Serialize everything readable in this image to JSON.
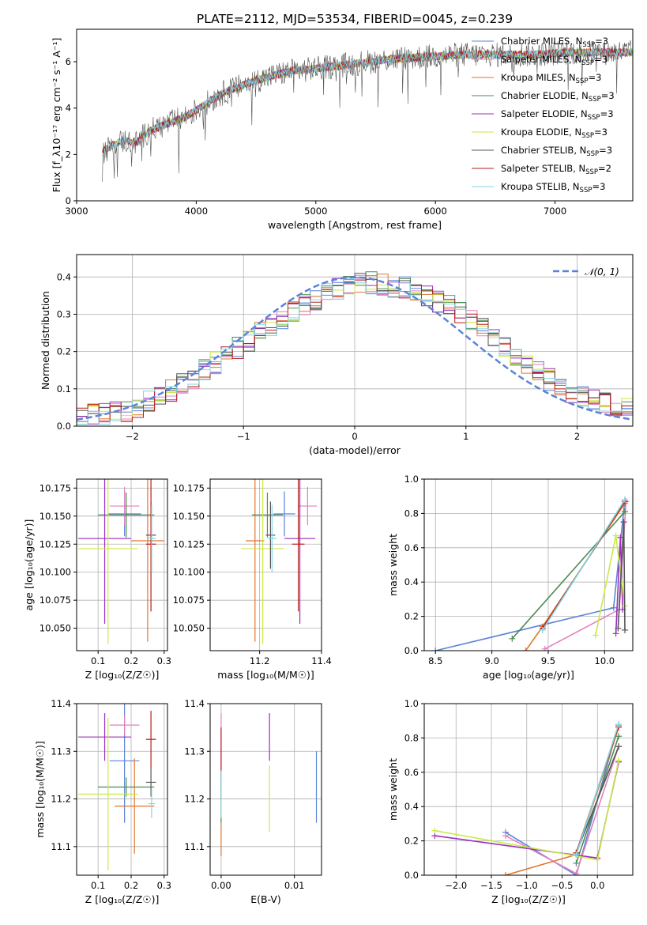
{
  "figure_title": "PLATE=2112, MJD=53534, FIBERID=0045, z=0.239",
  "colors": {
    "chabrier_miles": "#5b84d8",
    "salpeter_miles": "#e37fbf",
    "kroupa_miles": "#e3752b",
    "chabrier_elodie": "#4d8a55",
    "salpeter_elodie": "#9a2fbe",
    "kroupa_elodie": "#c9ea43",
    "chabrier_stelib": "#555555",
    "salpeter_stelib": "#b81d1d",
    "kroupa_stelib": "#7fd6e6",
    "normal_curve": "#5b84d8",
    "grid": "#b0b0b0"
  },
  "chart_data": [
    {
      "id": "spectrum",
      "type": "line",
      "title": "PLATE=2112, MJD=53534, FIBERID=0045, z=0.239",
      "xlabel": "wavelength [Angstrom, rest frame]",
      "ylabel": "Flux [f_λ10⁻¹⁷ erg cm⁻² s⁻¹ A⁻¹]",
      "xlim": [
        3000,
        7650
      ],
      "ylim": [
        0,
        7.4
      ],
      "xticks": [
        3000,
        4000,
        5000,
        6000,
        7000
      ],
      "yticks": [
        0,
        2,
        4,
        6
      ],
      "grid": false,
      "legend_position": "top-right",
      "spectrum_anchor": {
        "x": [
          3215,
          3300,
          3400,
          3500,
          3600,
          3700,
          3800,
          3900,
          4000,
          4200,
          4500,
          4800,
          5000,
          5300,
          5600,
          5900,
          6200,
          6500,
          6800,
          7100,
          7400,
          7650
        ],
        "y": [
          2.1,
          2.4,
          2.6,
          2.5,
          3.0,
          3.2,
          3.4,
          3.6,
          3.9,
          4.6,
          5.2,
          5.6,
          5.7,
          5.9,
          6.1,
          6.2,
          6.3,
          6.3,
          6.3,
          6.4,
          6.4,
          6.4
        ]
      },
      "series": [
        {
          "name": "Chabrier MILES, N",
          "sub": "SSP",
          "suffix": "=3",
          "color": "#5b84d8"
        },
        {
          "name": "Salpeter MILES, N",
          "sub": "SSP",
          "suffix": "=3",
          "color": "#e37fbf"
        },
        {
          "name": "Kroupa MILES, N",
          "sub": "SSP",
          "suffix": "=3",
          "color": "#e3752b"
        },
        {
          "name": "Chabrier ELODIE, N",
          "sub": "SSP",
          "suffix": "=3",
          "color": "#4d8a55"
        },
        {
          "name": "Salpeter ELODIE, N",
          "sub": "SSP",
          "suffix": "=3",
          "color": "#9a2fbe"
        },
        {
          "name": "Kroupa ELODIE, N",
          "sub": "SSP",
          "suffix": "=3",
          "color": "#c9ea43"
        },
        {
          "name": "Chabrier STELIB, N",
          "sub": "SSP",
          "suffix": "=3",
          "color": "#555555"
        },
        {
          "name": "Salpeter STELIB, N",
          "sub": "SSP",
          "suffix": "=2",
          "color": "#b81d1d"
        },
        {
          "name": "Kroupa STELIB, N",
          "sub": "SSP",
          "suffix": "=3",
          "color": "#7fd6e6"
        }
      ]
    },
    {
      "id": "residual_hist",
      "type": "histogram",
      "xlabel": "(data-model)/error",
      "ylabel": "Normed distribution",
      "xlim": [
        -2.5,
        2.5
      ],
      "ylim": [
        0,
        0.46
      ],
      "xticks": [
        -2,
        -1,
        0,
        1,
        2
      ],
      "yticks": [
        0.0,
        0.1,
        0.2,
        0.3,
        0.4
      ],
      "grid": true,
      "bin_width": 0.1,
      "bin_start": -2.5,
      "legend": "𝒩(0, 1)",
      "legend_position": "top-right",
      "normal_curve": {
        "mean": 0,
        "sigma": 1
      },
      "histogram_shape": {
        "x": [
          -2.5,
          -2.0,
          -1.5,
          -1.0,
          -0.5,
          0.0,
          0.5,
          1.0,
          1.5,
          2.0,
          2.5
        ],
        "y": [
          0.025,
          0.04,
          0.12,
          0.22,
          0.32,
          0.39,
          0.37,
          0.3,
          0.17,
          0.08,
          0.045
        ]
      },
      "series_colors": [
        "#5b84d8",
        "#e37fbf",
        "#e3752b",
        "#4d8a55",
        "#9a2fbe",
        "#c9ea43",
        "#555555",
        "#b81d1d",
        "#7fd6e6"
      ]
    },
    {
      "id": "age_vs_Z",
      "type": "errorbar",
      "xlabel": "Z [log₁₀(Z/Z☉)]",
      "ylabel": "age  [log₁₀(age/yr)]",
      "xlim": [
        0.035,
        0.31
      ],
      "ylim": [
        10.03,
        10.183
      ],
      "xticks": [
        0.1,
        0.2,
        0.3
      ],
      "yticks": [
        10.05,
        10.075,
        10.1,
        10.125,
        10.15,
        10.175
      ],
      "grid": true,
      "points": [
        {
          "x": 0.18,
          "y": 10.152,
          "xerr": 0.05,
          "yerr": 0.02,
          "color": "#5b84d8"
        },
        {
          "x": 0.18,
          "y": 10.159,
          "xerr": 0.045,
          "yerr": 0.017,
          "color": "#e37fbf"
        },
        {
          "x": 0.25,
          "y": 10.128,
          "xerr": 0.05,
          "yerr": 0.09,
          "color": "#e3752b"
        },
        {
          "x": 0.185,
          "y": 10.151,
          "xerr": 0.085,
          "yerr": 0.02,
          "color": "#4d8a55"
        },
        {
          "x": 0.12,
          "y": 10.13,
          "xerr": 0.08,
          "yerr": 0.076,
          "color": "#9a2fbe"
        },
        {
          "x": 0.13,
          "y": 10.121,
          "xerr": 0.09,
          "yerr": 0.085,
          "color": "#c9ea43"
        },
        {
          "x": 0.26,
          "y": 10.133,
          "xerr": 0.015,
          "yerr": 0.03,
          "color": "#555555"
        },
        {
          "x": 0.26,
          "y": 10.125,
          "xerr": 0.015,
          "yerr": 0.06,
          "color": "#b81d1d"
        },
        {
          "x": 0.262,
          "y": 10.13,
          "xerr": 0.012,
          "yerr": 0.03,
          "color": "#7fd6e6"
        }
      ]
    },
    {
      "id": "age_vs_mass",
      "type": "errorbar",
      "xlabel": "mass [log₁₀(M/M☉)]",
      "ylabel": "",
      "xlim": [
        11.04,
        11.4
      ],
      "ylim": [
        10.03,
        10.183
      ],
      "xticks": [
        11.2,
        11.4
      ],
      "yticks": [
        10.05,
        10.075,
        10.1,
        10.125,
        10.15,
        10.175
      ],
      "grid": true,
      "points": [
        {
          "x": 11.28,
          "y": 10.152,
          "xerr": 0.035,
          "yerr": 0.02,
          "color": "#5b84d8"
        },
        {
          "x": 11.355,
          "y": 10.159,
          "xerr": 0.03,
          "yerr": 0.017,
          "color": "#e37fbf"
        },
        {
          "x": 11.185,
          "y": 10.128,
          "xerr": 0.03,
          "yerr": 0.09,
          "color": "#e3752b"
        },
        {
          "x": 11.225,
          "y": 10.151,
          "xerr": 0.05,
          "yerr": 0.02,
          "color": "#4d8a55"
        },
        {
          "x": 11.33,
          "y": 10.13,
          "xerr": 0.05,
          "yerr": 0.076,
          "color": "#9a2fbe"
        },
        {
          "x": 11.21,
          "y": 10.121,
          "xerr": 0.07,
          "yerr": 0.085,
          "color": "#c9ea43"
        },
        {
          "x": 11.235,
          "y": 10.133,
          "xerr": 0.015,
          "yerr": 0.03,
          "color": "#555555"
        },
        {
          "x": 11.325,
          "y": 10.125,
          "xerr": 0.02,
          "yerr": 0.06,
          "color": "#b81d1d"
        },
        {
          "x": 11.24,
          "y": 10.13,
          "xerr": 0.015,
          "yerr": 0.03,
          "color": "#7fd6e6"
        }
      ]
    },
    {
      "id": "massweight_vs_age",
      "type": "line",
      "xlabel": "age  [log₁₀(age/yr)]",
      "ylabel": "mass weight",
      "xlim": [
        8.4,
        10.25
      ],
      "ylim": [
        0,
        1.0
      ],
      "xticks": [
        8.5,
        9.0,
        9.5,
        10.0
      ],
      "yticks": [
        0.0,
        0.2,
        0.4,
        0.6,
        0.8,
        1.0
      ],
      "grid": true,
      "series": [
        {
          "color": "#5b84d8",
          "x": [
            8.5,
            10.08,
            10.18
          ],
          "y": [
            0.0,
            0.25,
            0.88
          ]
        },
        {
          "color": "#e37fbf",
          "x": [
            9.47,
            10.13,
            10.19
          ],
          "y": [
            0.01,
            0.24,
            0.87
          ]
        },
        {
          "color": "#e3752b",
          "x": [
            9.3,
            9.45,
            10.18
          ],
          "y": [
            0.0,
            0.14,
            0.86
          ]
        },
        {
          "color": "#4d8a55",
          "x": [
            9.18,
            10.18
          ],
          "y": [
            0.07,
            0.81
          ]
        },
        {
          "color": "#9a2fbe",
          "x": [
            10.1,
            10.14,
            10.16
          ],
          "y": [
            0.1,
            0.66,
            0.24
          ]
        },
        {
          "color": "#c9ea43",
          "x": [
            9.92,
            10.1,
            10.18
          ],
          "y": [
            0.09,
            0.67,
            0.26
          ]
        },
        {
          "color": "#555555",
          "x": [
            10.12,
            10.17,
            10.18
          ],
          "y": [
            0.13,
            0.75,
            0.12
          ]
        },
        {
          "color": "#b81d1d",
          "x": [
            9.45,
            10.18
          ],
          "y": [
            0.13,
            0.87
          ]
        },
        {
          "color": "#7fd6e6",
          "x": [
            9.45,
            10.18
          ],
          "y": [
            0.12,
            0.88
          ]
        }
      ]
    },
    {
      "id": "mass_vs_Z",
      "type": "errorbar",
      "xlabel": "Z [log₁₀(Z/Z☉)]",
      "ylabel": "mass [log₁₀(M/M☉)]",
      "xlim": [
        0.035,
        0.31
      ],
      "ylim": [
        11.04,
        11.4
      ],
      "xticks": [
        0.1,
        0.2,
        0.3
      ],
      "yticks": [
        11.1,
        11.2,
        11.3,
        11.4
      ],
      "grid": true,
      "points": [
        {
          "x": 0.18,
          "y": 11.28,
          "xerr": 0.045,
          "yerr": 0.13,
          "color": "#5b84d8"
        },
        {
          "x": 0.18,
          "y": 11.355,
          "xerr": 0.045,
          "yerr": 0.02,
          "color": "#e37fbf"
        },
        {
          "x": 0.21,
          "y": 11.185,
          "xerr": 0.06,
          "yerr": 0.1,
          "color": "#e3752b"
        },
        {
          "x": 0.185,
          "y": 11.225,
          "xerr": 0.085,
          "yerr": 0.02,
          "color": "#4d8a55"
        },
        {
          "x": 0.12,
          "y": 11.33,
          "xerr": 0.08,
          "yerr": 0.05,
          "color": "#9a2fbe"
        },
        {
          "x": 0.13,
          "y": 11.21,
          "xerr": 0.09,
          "yerr": 0.16,
          "color": "#c9ea43"
        },
        {
          "x": 0.26,
          "y": 11.235,
          "xerr": 0.015,
          "yerr": 0.03,
          "color": "#555555"
        },
        {
          "x": 0.26,
          "y": 11.325,
          "xerr": 0.015,
          "yerr": 0.06,
          "color": "#b81d1d"
        },
        {
          "x": 0.262,
          "y": 11.19,
          "xerr": 0.01,
          "yerr": 0.03,
          "color": "#7fd6e6"
        }
      ]
    },
    {
      "id": "mass_vs_ebv",
      "type": "errorbar",
      "xlabel": "E(B-V)",
      "ylabel": "",
      "xlim": [
        -0.0015,
        0.0137
      ],
      "ylim": [
        11.04,
        11.4
      ],
      "xticks": [
        0.0,
        0.01
      ],
      "yticks": [
        11.1,
        11.2,
        11.3,
        11.4
      ],
      "grid": true,
      "points": [
        {
          "x": 0.013,
          "y": 11.225,
          "xerr": 0,
          "yerr": 0.075,
          "color": "#5b84d8"
        },
        {
          "x": 0.0,
          "y": 11.3,
          "xerr": 0,
          "yerr": 0.08,
          "color": "#e37fbf"
        },
        {
          "x": 0.0,
          "y": 11.14,
          "xerr": 0,
          "yerr": 0.06,
          "color": "#e3752b"
        },
        {
          "x": 0.0,
          "y": 11.2,
          "xerr": 0,
          "yerr": 0.05,
          "color": "#4d8a55"
        },
        {
          "x": 0.0066,
          "y": 11.33,
          "xerr": 0,
          "yerr": 0.05,
          "color": "#9a2fbe"
        },
        {
          "x": 0.0066,
          "y": 11.2,
          "xerr": 0,
          "yerr": 0.07,
          "color": "#c9ea43"
        },
        {
          "x": 0.0,
          "y": 11.23,
          "xerr": 0,
          "yerr": 0.03,
          "color": "#555555"
        },
        {
          "x": 0.0,
          "y": 11.3,
          "xerr": 0,
          "yerr": 0.05,
          "color": "#b81d1d"
        },
        {
          "x": 0.0,
          "y": 11.21,
          "xerr": 0,
          "yerr": 0.05,
          "color": "#7fd6e6"
        }
      ]
    },
    {
      "id": "massweight_vs_Z",
      "type": "line",
      "xlabel": "Z [log₁₀(Z/Z☉)]",
      "ylabel": "mass weight",
      "xlim": [
        -2.45,
        0.5
      ],
      "ylim": [
        0,
        1.0
      ],
      "xticks": [
        -2.0,
        -1.5,
        -1.0,
        -0.5,
        0.0
      ],
      "yticks": [
        0.0,
        0.2,
        0.4,
        0.6,
        0.8,
        1.0
      ],
      "grid": true,
      "series": [
        {
          "color": "#5b84d8",
          "x": [
            -1.3,
            -0.3,
            0.3
          ],
          "y": [
            0.25,
            0.0,
            0.88
          ]
        },
        {
          "color": "#e37fbf",
          "x": [
            -1.3,
            -0.3,
            0.3
          ],
          "y": [
            0.23,
            0.01,
            0.75
          ]
        },
        {
          "color": "#e3752b",
          "x": [
            -1.3,
            -0.3,
            0.3
          ],
          "y": [
            0.0,
            0.12,
            0.86
          ]
        },
        {
          "color": "#4d8a55",
          "x": [
            -0.3,
            0.3
          ],
          "y": [
            0.07,
            0.81
          ]
        },
        {
          "color": "#9a2fbe",
          "x": [
            -2.3,
            0.0,
            0.3
          ],
          "y": [
            0.23,
            0.1,
            0.66
          ]
        },
        {
          "color": "#c9ea43",
          "x": [
            -2.3,
            0.0,
            0.3
          ],
          "y": [
            0.26,
            0.09,
            0.67
          ]
        },
        {
          "color": "#555555",
          "x": [
            -0.3,
            0.3
          ],
          "y": [
            0.13,
            0.75
          ]
        },
        {
          "color": "#b81d1d",
          "x": [
            -0.3,
            0.3
          ],
          "y": [
            0.13,
            0.87
          ]
        },
        {
          "color": "#7fd6e6",
          "x": [
            -0.3,
            0.3
          ],
          "y": [
            0.12,
            0.88
          ]
        }
      ]
    }
  ]
}
